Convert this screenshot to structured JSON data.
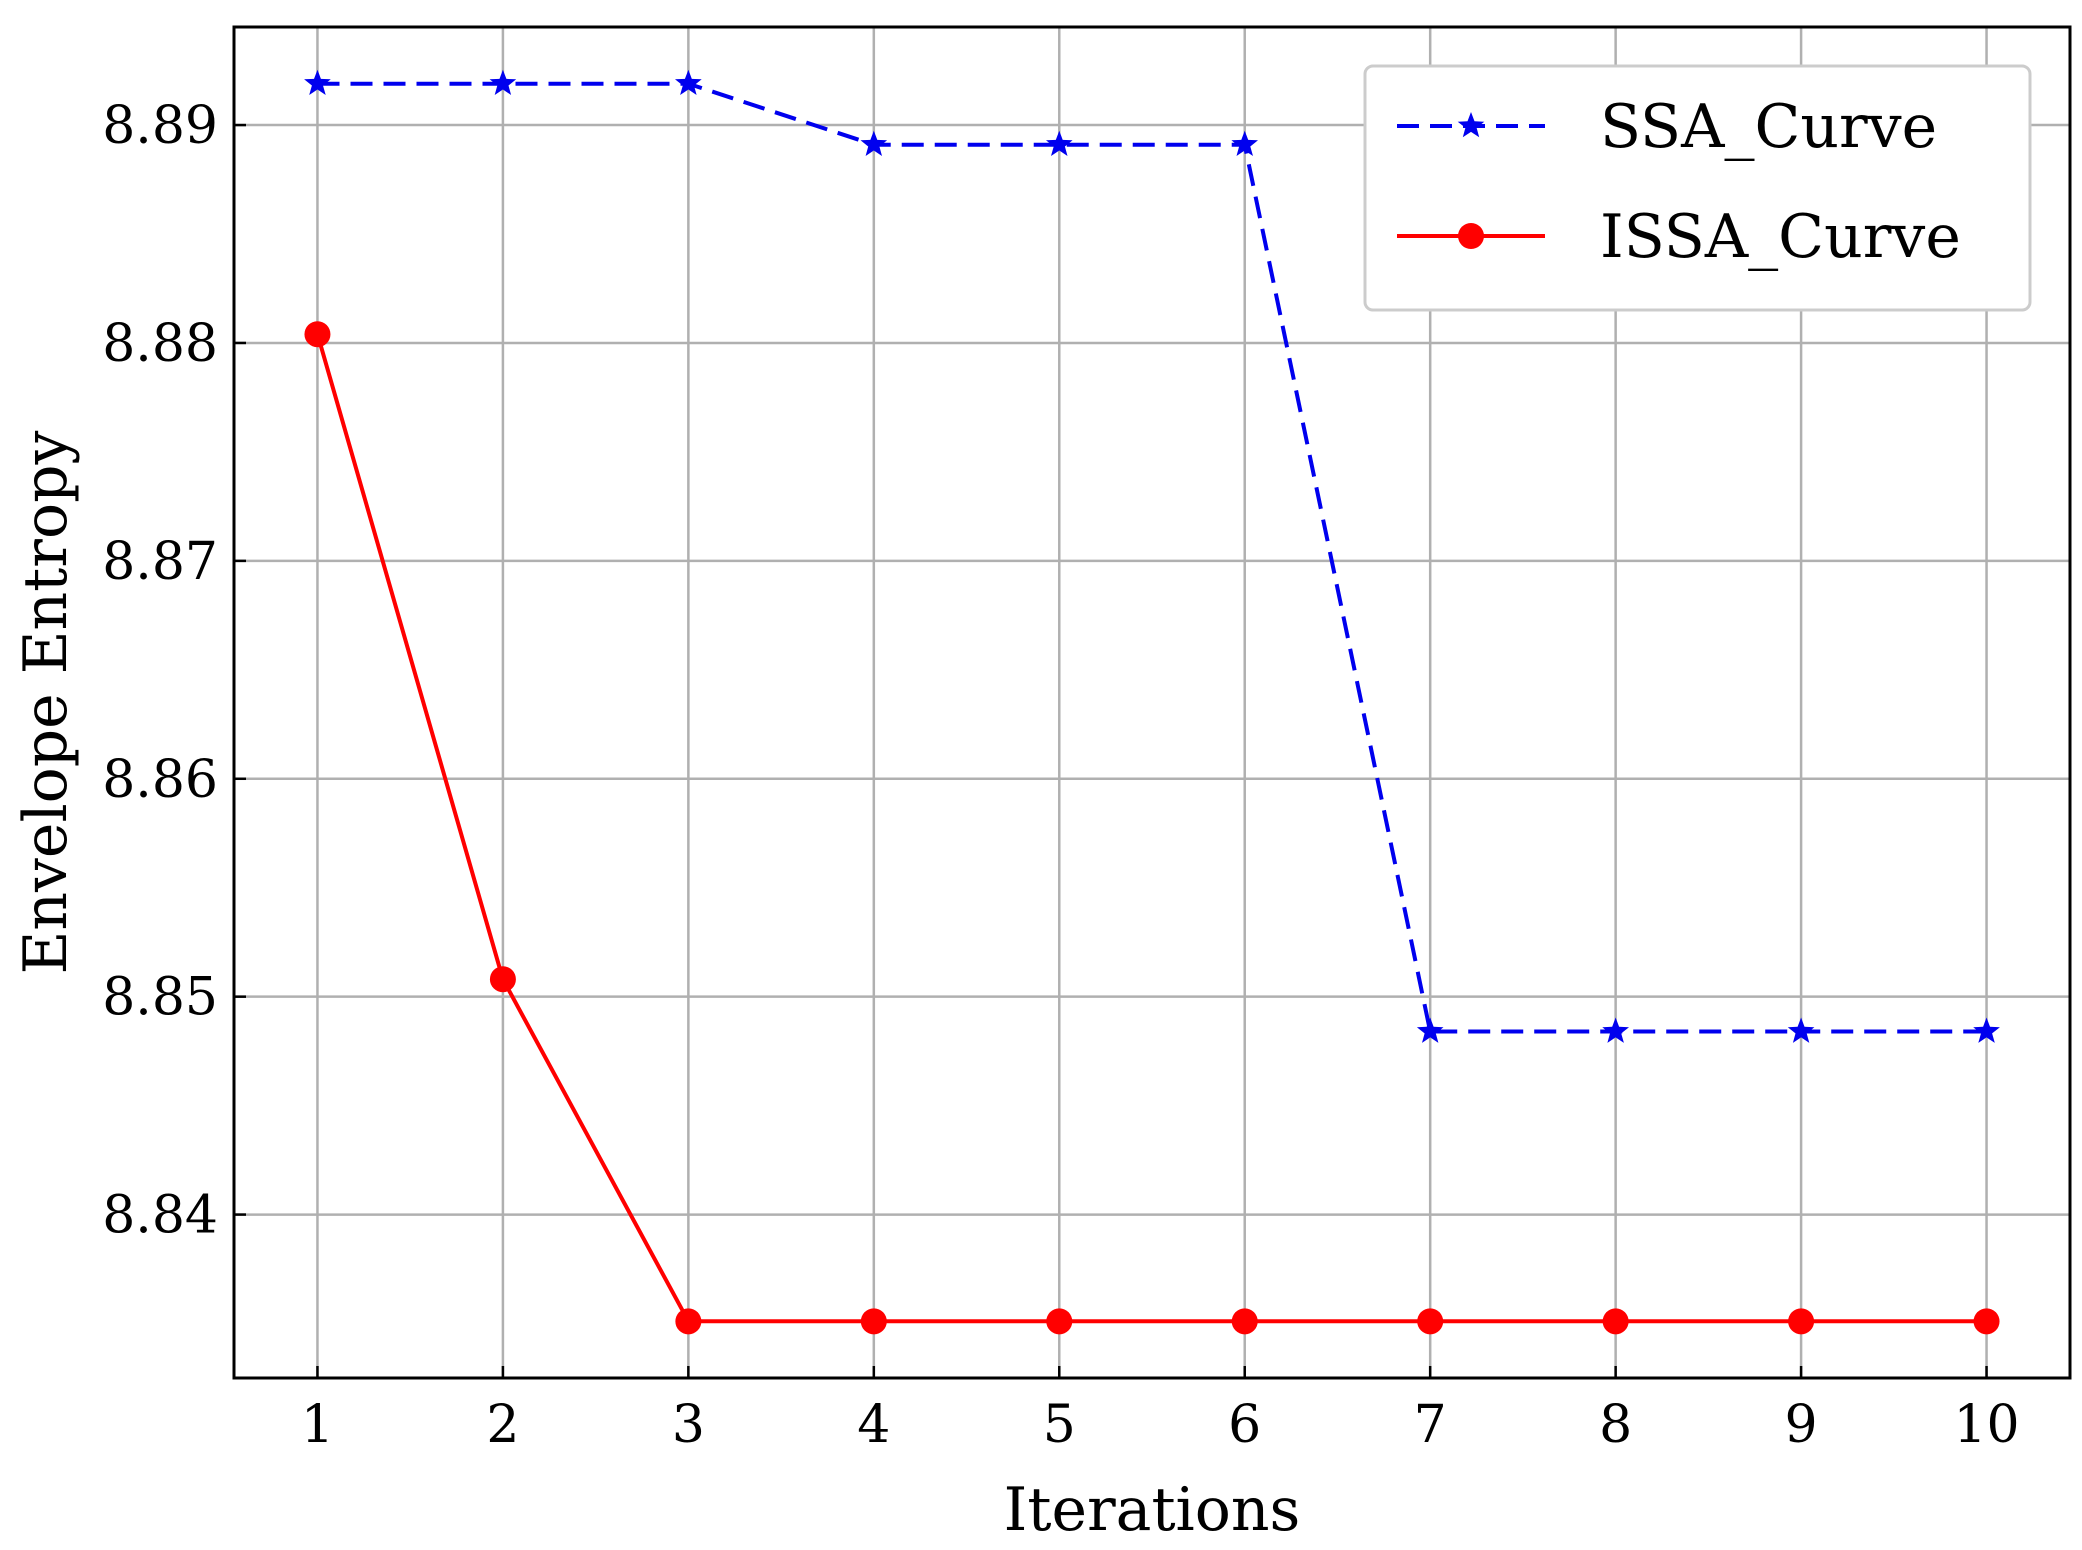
{
  "chart_data": {
    "type": "line",
    "xlabel": "Iterations",
    "ylabel": "Envelope Entropy",
    "x": [
      1,
      2,
      3,
      4,
      5,
      6,
      7,
      8,
      9,
      10
    ],
    "xlim": [
      0.55,
      10.45
    ],
    "ylim": [
      8.8325,
      8.8945
    ],
    "xticks": [
      1,
      2,
      3,
      4,
      5,
      6,
      7,
      8,
      9,
      10
    ],
    "yticks": [
      8.84,
      8.85,
      8.86,
      8.87,
      8.88,
      8.89
    ],
    "ytick_labels": [
      "8.84",
      "8.85",
      "8.86",
      "8.87",
      "8.88",
      "8.89"
    ],
    "grid": true,
    "legend_position": "top-right",
    "series": [
      {
        "name": "SSA_Curve",
        "color": "#0000ee",
        "line_style": "dashed",
        "marker": "star",
        "values": [
          8.8919,
          8.8919,
          8.8919,
          8.8891,
          8.8891,
          8.8891,
          8.8484,
          8.8484,
          8.8484,
          8.8484
        ]
      },
      {
        "name": "ISSA_Curve",
        "color": "#ff0000",
        "line_style": "solid",
        "marker": "circle",
        "values": [
          8.8804,
          8.8508,
          8.8351,
          8.8351,
          8.8351,
          8.8351,
          8.8351,
          8.8351,
          8.8351,
          8.8351
        ]
      }
    ]
  }
}
